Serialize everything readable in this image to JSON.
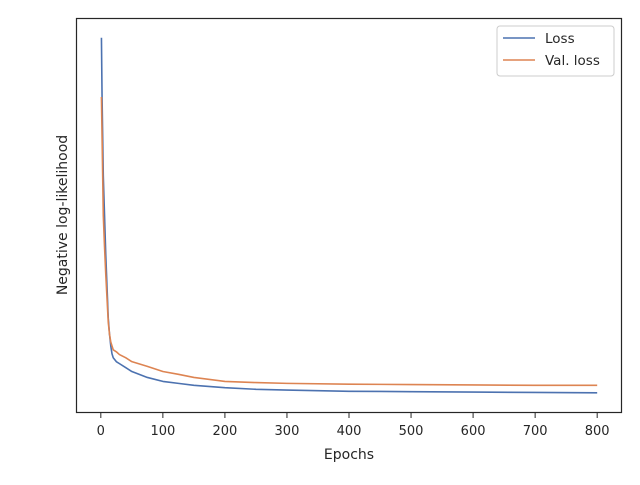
{
  "chart_data": {
    "type": "line",
    "title": "",
    "xlabel": "Epochs",
    "ylabel": "Negative log-likelihood",
    "xlim": [
      -40,
      840
    ],
    "ylim": [
      0,
      1
    ],
    "x_ticks": [
      0,
      100,
      200,
      300,
      400,
      500,
      600,
      700,
      800
    ],
    "y_ticks": [],
    "grid": false,
    "legend_position": "top-right",
    "series": [
      {
        "name": "Loss",
        "color": "#4c72b0",
        "x": [
          1,
          2,
          3,
          4,
          6,
          8,
          10,
          12,
          14,
          16,
          18,
          20,
          25,
          30,
          40,
          50,
          75,
          100,
          125,
          150,
          200,
          250,
          300,
          400,
          500,
          600,
          700,
          800
        ],
        "y": [
          0.95,
          0.8,
          0.7,
          0.6,
          0.5,
          0.4,
          0.32,
          0.24,
          0.2,
          0.17,
          0.15,
          0.14,
          0.13,
          0.125,
          0.115,
          0.105,
          0.09,
          0.08,
          0.075,
          0.07,
          0.064,
          0.06,
          0.058,
          0.055,
          0.054,
          0.053,
          0.052,
          0.051
        ]
      },
      {
        "name": "Val. loss",
        "color": "#dd8452",
        "x": [
          1,
          2,
          3,
          4,
          6,
          8,
          10,
          12,
          14,
          16,
          18,
          20,
          25,
          30,
          40,
          50,
          75,
          100,
          125,
          150,
          200,
          250,
          300,
          400,
          500,
          600,
          700,
          800
        ],
        "y": [
          0.8,
          0.7,
          0.6,
          0.5,
          0.42,
          0.35,
          0.29,
          0.23,
          0.2,
          0.18,
          0.17,
          0.16,
          0.155,
          0.148,
          0.14,
          0.13,
          0.118,
          0.105,
          0.098,
          0.09,
          0.08,
          0.077,
          0.075,
          0.073,
          0.072,
          0.071,
          0.07,
          0.07
        ]
      }
    ]
  }
}
